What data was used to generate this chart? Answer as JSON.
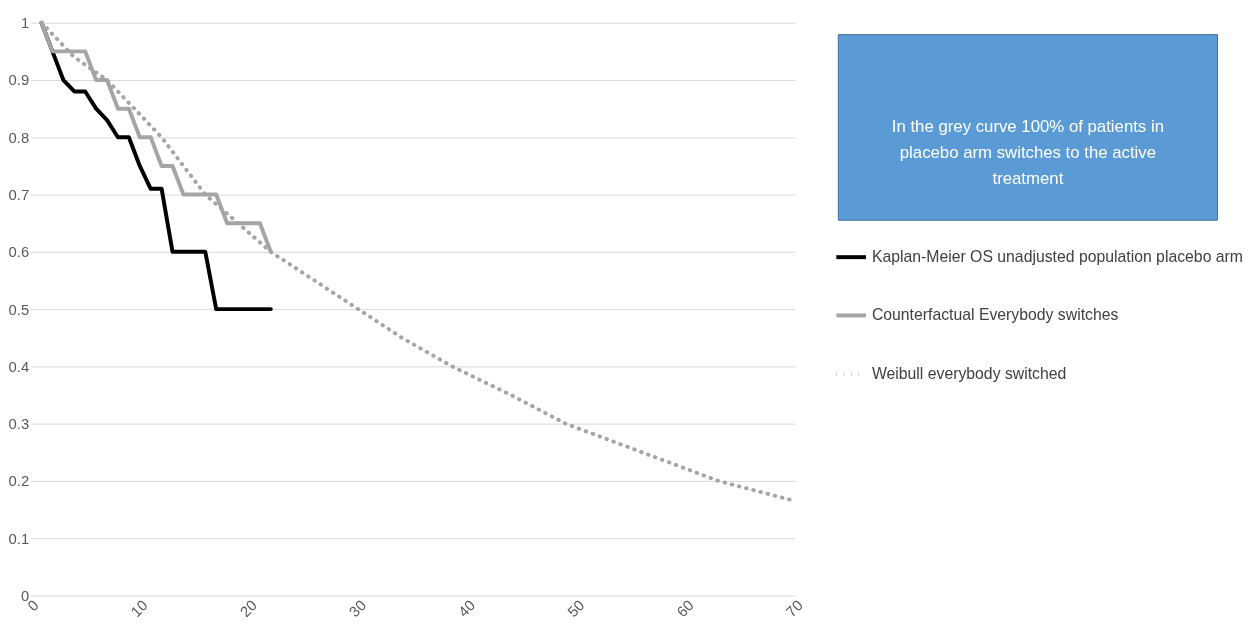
{
  "chart_data": {
    "type": "line",
    "x": [
      1,
      2,
      3,
      4,
      5,
      6,
      7,
      8,
      9,
      10,
      11,
      12,
      13,
      14,
      15,
      16,
      17,
      18,
      19,
      20,
      21,
      22
    ],
    "series": [
      {
        "name": "Kaplan-Meier OS unadjusted population placebo arm",
        "color": "#000000",
        "line_style": "solid",
        "values": [
          1,
          0.95,
          0.9,
          0.88,
          0.88,
          0.85,
          0.83,
          0.8,
          0.8,
          0.75,
          0.71,
          0.71,
          0.6,
          0.6,
          0.6,
          0.6,
          0.5,
          0.5,
          0.5,
          0.5,
          0.5,
          0.5
        ]
      },
      {
        "name": "Counterfactual Everybody switches",
        "color": "#a5a5a5",
        "line_style": "solid",
        "values": [
          1,
          0.95,
          0.95,
          0.95,
          0.95,
          0.9,
          0.9,
          0.85,
          0.85,
          0.8,
          0.8,
          0.75,
          0.75,
          0.7,
          0.7,
          0.7,
          0.7,
          0.65,
          0.65,
          0.65,
          0.65,
          0.6
        ]
      },
      {
        "name": "Weibull everybody switched",
        "color": "#a5a5a5",
        "line_style": "dotted",
        "x": [
          1,
          4,
          7,
          12,
          16,
          22,
          26,
          30,
          34,
          38.6,
          44,
          49,
          56,
          63,
          70
        ],
        "values": [
          1,
          0.94,
          0.9,
          0.8,
          0.7,
          0.6,
          0.55,
          0.5,
          0.45,
          0.4,
          0.35,
          0.3,
          0.25,
          0.2,
          0.165
        ]
      }
    ],
    "xlim": [
      0,
      70
    ],
    "xticks": [
      0,
      10,
      20,
      30,
      40,
      50,
      60,
      70
    ],
    "ylim": [
      0,
      1
    ],
    "yticks": [
      0,
      0.1,
      0.2,
      0.3,
      0.4,
      0.5,
      0.6,
      0.7,
      0.8,
      0.9,
      1
    ],
    "grid": "y",
    "legend": "right",
    "marker": "none",
    "annotations": [
      "In the grey curve 100% of patients in placebo arm switches to the active treatment"
    ]
  }
}
